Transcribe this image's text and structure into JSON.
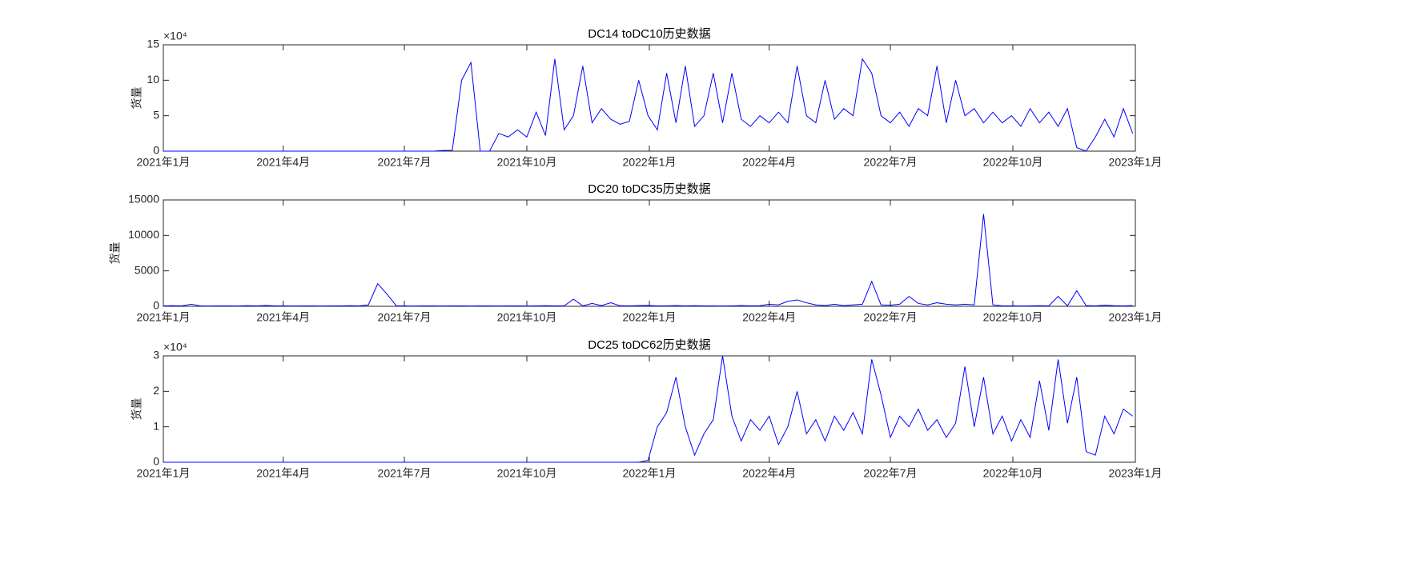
{
  "chart_data": [
    {
      "type": "line",
      "title": "DC14 toDC10历史数据",
      "y_label": "货量",
      "y_multiplier": "×10⁴",
      "color": "#0000ff",
      "xlim": [
        0,
        730
      ],
      "ylim": [
        0,
        15
      ],
      "yticks": [
        0,
        5,
        10,
        15
      ],
      "xticks": [
        {
          "value": 0,
          "label": "2021年1月"
        },
        {
          "value": 90,
          "label": "2021年4月"
        },
        {
          "value": 181,
          "label": "2021年7月"
        },
        {
          "value": 273,
          "label": "2021年10月"
        },
        {
          "value": 365,
          "label": "2022年1月"
        },
        {
          "value": 455,
          "label": "2022年4月"
        },
        {
          "value": 546,
          "label": "2022年7月"
        },
        {
          "value": 638,
          "label": "2022年10月"
        },
        {
          "value": 730,
          "label": "2023年1月"
        }
      ],
      "x": [
        0,
        7,
        14,
        21,
        28,
        35,
        42,
        49,
        56,
        63,
        70,
        77,
        84,
        91,
        98,
        105,
        112,
        119,
        126,
        133,
        140,
        147,
        154,
        161,
        168,
        175,
        182,
        189,
        196,
        203,
        210,
        217,
        224,
        231,
        238,
        245,
        252,
        259,
        266,
        273,
        280,
        287,
        294,
        301,
        308,
        315,
        322,
        329,
        336,
        343,
        350,
        357,
        364,
        371,
        378,
        385,
        392,
        399,
        406,
        413,
        420,
        427,
        434,
        441,
        448,
        455,
        462,
        469,
        476,
        483,
        490,
        497,
        504,
        511,
        518,
        525,
        532,
        539,
        546,
        553,
        560,
        567,
        574,
        581,
        588,
        595,
        602,
        609,
        616,
        623,
        630,
        637,
        644,
        651,
        658,
        665,
        672,
        679,
        686,
        693,
        700,
        707,
        714,
        721,
        728
      ],
      "values": [
        0,
        0,
        0,
        0,
        0,
        0,
        0,
        0,
        0,
        0,
        0,
        0,
        0,
        0,
        0,
        0,
        0,
        0,
        0,
        0,
        0,
        0,
        0,
        0,
        0,
        0,
        0,
        0,
        0,
        0,
        0.1,
        0.1,
        10,
        12.5,
        0,
        0,
        2.5,
        2,
        3,
        2,
        5.5,
        2.2,
        13,
        3,
        5,
        12,
        4,
        6,
        4.5,
        3.8,
        4.2,
        10,
        5,
        3,
        11,
        4,
        12,
        3.5,
        5,
        11,
        4,
        11,
        4.5,
        3.5,
        5,
        4,
        5.5,
        4,
        12,
        5,
        4,
        10,
        4.5,
        6,
        5,
        13,
        11,
        5,
        4,
        5.5,
        3.5,
        6,
        5,
        12,
        4,
        10,
        5,
        6,
        4,
        5.5,
        4,
        5,
        3.5,
        6,
        4,
        5.5,
        3.5,
        6,
        0.5,
        0,
        2,
        4.5,
        2,
        6,
        2.5
      ]
    },
    {
      "type": "line",
      "title": "DC20 toDC35历史数据",
      "y_label": "货量",
      "color": "#0000ff",
      "xlim": [
        0,
        730
      ],
      "ylim": [
        0,
        15000
      ],
      "yticks": [
        0,
        5000,
        10000,
        15000
      ],
      "xticks": [
        {
          "value": 0,
          "label": "2021年1月"
        },
        {
          "value": 90,
          "label": "2021年4月"
        },
        {
          "value": 181,
          "label": "2021年7月"
        },
        {
          "value": 273,
          "label": "2021年10月"
        },
        {
          "value": 365,
          "label": "2022年1月"
        },
        {
          "value": 455,
          "label": "2022年4月"
        },
        {
          "value": 546,
          "label": "2022年7月"
        },
        {
          "value": 638,
          "label": "2022年10月"
        },
        {
          "value": 730,
          "label": "2023年1月"
        }
      ],
      "x": [
        0,
        7,
        14,
        21,
        28,
        35,
        42,
        49,
        56,
        63,
        70,
        77,
        84,
        91,
        98,
        105,
        112,
        119,
        126,
        133,
        140,
        147,
        154,
        161,
        168,
        175,
        182,
        189,
        196,
        203,
        210,
        217,
        224,
        231,
        238,
        245,
        252,
        259,
        266,
        273,
        280,
        287,
        294,
        301,
        308,
        315,
        322,
        329,
        336,
        343,
        350,
        357,
        364,
        371,
        378,
        385,
        392,
        399,
        406,
        413,
        420,
        427,
        434,
        441,
        448,
        455,
        462,
        469,
        476,
        483,
        490,
        497,
        504,
        511,
        518,
        525,
        532,
        539,
        546,
        553,
        560,
        567,
        574,
        581,
        588,
        595,
        602,
        609,
        616,
        623,
        630,
        637,
        644,
        651,
        658,
        665,
        672,
        679,
        686,
        693,
        700,
        707,
        714,
        721,
        728
      ],
      "values": [
        50,
        80,
        60,
        300,
        50,
        40,
        60,
        50,
        40,
        80,
        50,
        120,
        60,
        50,
        40,
        60,
        50,
        40,
        60,
        50,
        80,
        60,
        200,
        3200,
        1700,
        60,
        50,
        40,
        60,
        50,
        40,
        60,
        50,
        40,
        60,
        50,
        40,
        60,
        50,
        40,
        60,
        80,
        60,
        50,
        1000,
        60,
        400,
        100,
        500,
        80,
        60,
        100,
        120,
        60,
        50,
        100,
        60,
        80,
        50,
        60,
        40,
        60,
        100,
        50,
        80,
        300,
        200,
        700,
        900,
        500,
        200,
        100,
        300,
        80,
        200,
        300,
        3500,
        200,
        150,
        300,
        1400,
        400,
        200,
        500,
        300,
        200,
        300,
        200,
        13000,
        200,
        60,
        50,
        40,
        60,
        80,
        60,
        1400,
        60,
        2200,
        100,
        60,
        150,
        80,
        60,
        100
      ]
    },
    {
      "type": "line",
      "title": "DC25 toDC62历史数据",
      "y_label": "货量",
      "y_multiplier": "×10⁴",
      "color": "#0000ff",
      "xlim": [
        0,
        730
      ],
      "ylim": [
        0,
        3
      ],
      "yticks": [
        0,
        1,
        2,
        3
      ],
      "xticks": [
        {
          "value": 0,
          "label": "2021年1月"
        },
        {
          "value": 90,
          "label": "2021年4月"
        },
        {
          "value": 181,
          "label": "2021年7月"
        },
        {
          "value": 273,
          "label": "2021年10月"
        },
        {
          "value": 365,
          "label": "2022年1月"
        },
        {
          "value": 455,
          "label": "2022年4月"
        },
        {
          "value": 546,
          "label": "2022年7月"
        },
        {
          "value": 638,
          "label": "2022年10月"
        },
        {
          "value": 730,
          "label": "2023年1月"
        }
      ],
      "x": [
        0,
        7,
        14,
        21,
        28,
        35,
        42,
        49,
        56,
        63,
        70,
        77,
        84,
        91,
        98,
        105,
        112,
        119,
        126,
        133,
        140,
        147,
        154,
        161,
        168,
        175,
        182,
        189,
        196,
        203,
        210,
        217,
        224,
        231,
        238,
        245,
        252,
        259,
        266,
        273,
        280,
        287,
        294,
        301,
        308,
        315,
        322,
        329,
        336,
        343,
        350,
        357,
        364,
        371,
        378,
        385,
        392,
        399,
        406,
        413,
        420,
        427,
        434,
        441,
        448,
        455,
        462,
        469,
        476,
        483,
        490,
        497,
        504,
        511,
        518,
        525,
        532,
        539,
        546,
        553,
        560,
        567,
        574,
        581,
        588,
        595,
        602,
        609,
        616,
        623,
        630,
        637,
        644,
        651,
        658,
        665,
        672,
        679,
        686,
        693,
        700,
        707,
        714,
        721,
        728
      ],
      "values": [
        0,
        0,
        0,
        0,
        0,
        0,
        0,
        0,
        0,
        0,
        0,
        0,
        0,
        0,
        0,
        0,
        0,
        0,
        0,
        0,
        0,
        0,
        0,
        0,
        0,
        0,
        0,
        0,
        0,
        0,
        0,
        0,
        0,
        0,
        0,
        0,
        0,
        0,
        0,
        0,
        0,
        0,
        0,
        0,
        0,
        0,
        0,
        0,
        0,
        0,
        0,
        0,
        0.05,
        1,
        1.4,
        2.4,
        1,
        0.2,
        0.8,
        1.2,
        3,
        1.3,
        0.6,
        1.2,
        0.9,
        1.3,
        0.5,
        1,
        2,
        0.8,
        1.2,
        0.6,
        1.3,
        0.9,
        1.4,
        0.8,
        2.9,
        1.9,
        0.7,
        1.3,
        1,
        1.5,
        0.9,
        1.2,
        0.7,
        1.1,
        2.7,
        1,
        2.4,
        0.8,
        1.3,
        0.6,
        1.2,
        0.7,
        2.3,
        0.9,
        2.9,
        1.1,
        2.4,
        0.3,
        0.2,
        1.3,
        0.8,
        1.5,
        1.3
      ]
    }
  ]
}
